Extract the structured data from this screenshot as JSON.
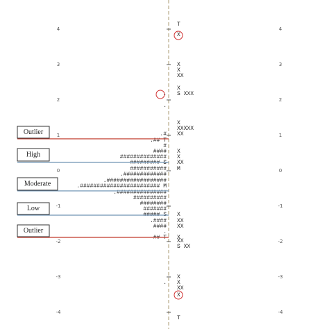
{
  "axis_labels": [
    "4",
    "3",
    "2",
    "1",
    "0",
    "-1",
    "-2",
    "-3",
    "-4"
  ],
  "bands": [
    {
      "label": "Outlier",
      "kind": "outlier"
    },
    {
      "label": "High",
      "kind": "band"
    },
    {
      "label": "Moderate",
      "kind": "band"
    },
    {
      "label": "Low",
      "kind": "band"
    },
    {
      "label": "Outlier",
      "kind": "outlier"
    }
  ],
  "rows": [
    {
      "right": "T"
    },
    {
      "right": "X"
    },
    {
      "right": "X"
    },
    {
      "right": "X"
    },
    {
      "right": "XX"
    },
    {
      "right": "X"
    },
    {
      "left": ".",
      "right": "S XXX"
    },
    {
      "left": "."
    },
    {
      "right": "X"
    },
    {
      "right": "XXXXX"
    },
    {
      "left": ".#",
      "right": "XX"
    },
    {
      "left": ".## T"
    },
    {
      "left": "#"
    },
    {
      "left": "####",
      "right": "X"
    },
    {
      "left": "##############",
      "right": "X"
    },
    {
      "left": "######### S",
      "right": "XX"
    },
    {
      "left": "###########",
      "right": "M"
    },
    {
      "left": ".#############"
    },
    {
      "left": ".##################"
    },
    {
      "left": ".######################## M"
    },
    {
      "left": ".###############"
    },
    {
      "left": "##########"
    },
    {
      "left": "########"
    },
    {
      "left": "#######"
    },
    {
      "left": "##### S",
      "right": "X"
    },
    {
      "left": ".####",
      "right": "XX"
    },
    {
      "left": "####",
      "right": "XX"
    },
    {
      "left": "."
    },
    {
      "left": "## T",
      "right": "X"
    },
    {
      "right": "XX"
    },
    {
      "right": "S XX"
    },
    {
      "right": "X"
    },
    {
      "left": ".",
      "right": "X"
    },
    {
      "right": "XX"
    },
    {
      "right": "X"
    },
    {
      "right": "T"
    }
  ]
}
